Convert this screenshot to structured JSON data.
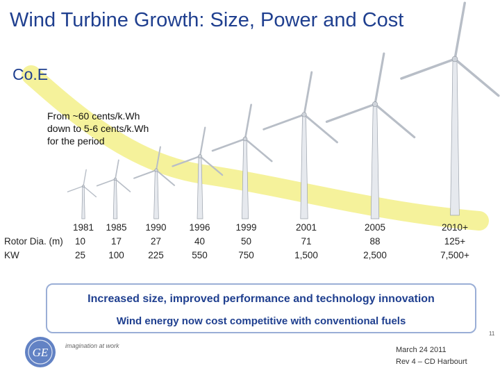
{
  "header": {
    "title": "Wind Turbine Growth: Size, Power and Cost",
    "coe_label": "Co.E",
    "period_note": "From ~60 cents/k.Wh\ndown to 5-6 cents/k.Wh\nfor the period"
  },
  "table": {
    "row_labels": [
      "Rotor Dia. (m)",
      "KW"
    ],
    "columns": [
      {
        "year": "1981",
        "rotor": "10",
        "kw": "25"
      },
      {
        "year": "1985",
        "rotor": "17",
        "kw": "100"
      },
      {
        "year": "1990",
        "rotor": "27",
        "kw": "225"
      },
      {
        "year": "1996",
        "rotor": "40",
        "kw": "550"
      },
      {
        "year": "1999",
        "rotor": "50",
        "kw": "750"
      },
      {
        "year": "2001",
        "rotor": "71",
        "kw": "1,500"
      },
      {
        "year": "2005",
        "rotor": "88",
        "kw": "2,500"
      },
      {
        "year": "2010+",
        "rotor": "125+",
        "kw": "7,500+"
      }
    ]
  },
  "summary": {
    "line1": "Increased size, improved performance and technology innovation",
    "line2": "Wind energy now cost competitive with conventional fuels"
  },
  "footer": {
    "logo_text": "GE",
    "tagline": "imagination at work",
    "date": "March 24 2011",
    "revision": "Rev 4 – CD Harbourt",
    "page_number": "11"
  },
  "colors": {
    "title_blue": "#1f3f8f",
    "cost_band": "#f3f08a",
    "box_border": "#9aaed6"
  }
}
